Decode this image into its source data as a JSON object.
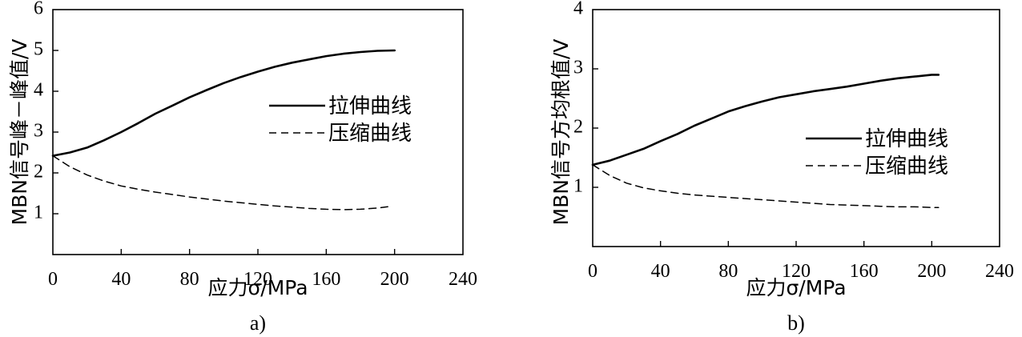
{
  "chart_data": [
    {
      "type": "line",
      "caption": "a)",
      "xlabel": "应力σ/MPa",
      "ylabel": "MBN信号峰－峰值/V",
      "xlim": [
        0,
        240
      ],
      "ylim": [
        0,
        6
      ],
      "xticks": [
        0,
        40,
        80,
        120,
        160,
        200,
        240
      ],
      "yticks": [
        1,
        2,
        3,
        4,
        5,
        6
      ],
      "legend_position": "right-middle",
      "grid": false,
      "series": [
        {
          "name": "拉伸曲线",
          "style": "solid",
          "x": [
            0,
            10,
            20,
            30,
            40,
            50,
            60,
            70,
            80,
            90,
            100,
            110,
            120,
            130,
            140,
            150,
            160,
            170,
            180,
            190,
            200
          ],
          "y": [
            2.42,
            2.5,
            2.62,
            2.8,
            3.0,
            3.22,
            3.45,
            3.65,
            3.85,
            4.03,
            4.2,
            4.35,
            4.48,
            4.6,
            4.7,
            4.78,
            4.86,
            4.92,
            4.96,
            4.99,
            5.0
          ]
        },
        {
          "name": "压缩曲线",
          "style": "dashed",
          "x": [
            0,
            10,
            20,
            30,
            40,
            50,
            60,
            70,
            80,
            90,
            100,
            110,
            120,
            130,
            140,
            150,
            160,
            170,
            180,
            190,
            196
          ],
          "y": [
            2.42,
            2.15,
            1.95,
            1.8,
            1.68,
            1.6,
            1.53,
            1.47,
            1.41,
            1.36,
            1.31,
            1.27,
            1.23,
            1.19,
            1.16,
            1.13,
            1.11,
            1.1,
            1.11,
            1.14,
            1.17
          ]
        }
      ]
    },
    {
      "type": "line",
      "caption": "b)",
      "xlabel": "应力σ/MPa",
      "ylabel": "MBN信号方均根值/V",
      "xlim": [
        0,
        240
      ],
      "ylim": [
        0,
        4
      ],
      "xticks": [
        0,
        40,
        80,
        120,
        160,
        200,
        240
      ],
      "yticks": [
        1,
        2,
        3,
        4
      ],
      "legend_position": "right-middle",
      "grid": false,
      "series": [
        {
          "name": "拉伸曲线",
          "style": "solid",
          "x": [
            0,
            10,
            20,
            30,
            40,
            50,
            60,
            70,
            80,
            90,
            100,
            110,
            120,
            130,
            140,
            150,
            160,
            170,
            180,
            190,
            200,
            204
          ],
          "y": [
            1.38,
            1.45,
            1.55,
            1.65,
            1.78,
            1.9,
            2.04,
            2.16,
            2.28,
            2.37,
            2.45,
            2.52,
            2.57,
            2.62,
            2.66,
            2.7,
            2.75,
            2.8,
            2.84,
            2.87,
            2.9,
            2.9
          ]
        },
        {
          "name": "压缩曲线",
          "style": "dashed",
          "x": [
            0,
            10,
            20,
            30,
            40,
            50,
            60,
            70,
            80,
            90,
            100,
            110,
            120,
            130,
            140,
            150,
            160,
            170,
            180,
            190,
            200,
            204
          ],
          "y": [
            1.38,
            1.2,
            1.07,
            0.99,
            0.94,
            0.9,
            0.87,
            0.85,
            0.83,
            0.81,
            0.79,
            0.77,
            0.75,
            0.73,
            0.71,
            0.7,
            0.69,
            0.68,
            0.67,
            0.67,
            0.66,
            0.66
          ]
        }
      ]
    }
  ]
}
